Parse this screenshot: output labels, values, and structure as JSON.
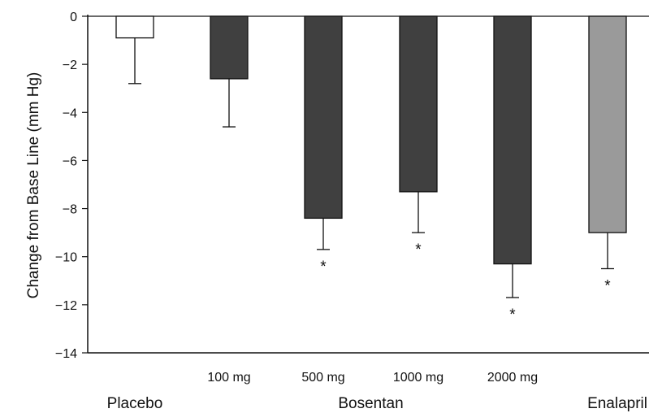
{
  "chart_data": {
    "type": "bar",
    "title": "",
    "xlabel": "",
    "ylabel": "Change from Base Line (mm Hg)",
    "ylim": [
      -14,
      0
    ],
    "yticks": [
      0,
      -2,
      -4,
      -6,
      -8,
      -10,
      -12,
      -14
    ],
    "ytick_labels": [
      "0",
      "−2",
      "−4",
      "−6",
      "−8",
      "−10",
      "−12",
      "−14"
    ],
    "grid": false,
    "categories": [
      "Placebo",
      "100 mg",
      "500 mg",
      "1000 mg",
      "2000 mg",
      "Enalapril"
    ],
    "dose_labels": [
      "",
      "100 mg",
      "500 mg",
      "1000 mg",
      "2000 mg",
      ""
    ],
    "values": [
      -0.9,
      -2.6,
      -8.4,
      -7.3,
      -10.3,
      -9.0
    ],
    "error_lower": [
      -2.8,
      -4.6,
      -9.7,
      -9.0,
      -11.7,
      -10.5
    ],
    "significance": [
      "",
      "",
      "*",
      "*",
      "*",
      "*"
    ],
    "bar_colors": [
      "#ffffff",
      "#404040",
      "#404040",
      "#404040",
      "#404040",
      "#9a9a9a"
    ],
    "group_labels": [
      {
        "label": "Placebo",
        "covers": [
          0
        ]
      },
      {
        "label": "Bosentan",
        "covers": [
          1,
          2,
          3,
          4
        ]
      },
      {
        "label": "Enalapril",
        "covers": [
          5
        ]
      }
    ]
  }
}
